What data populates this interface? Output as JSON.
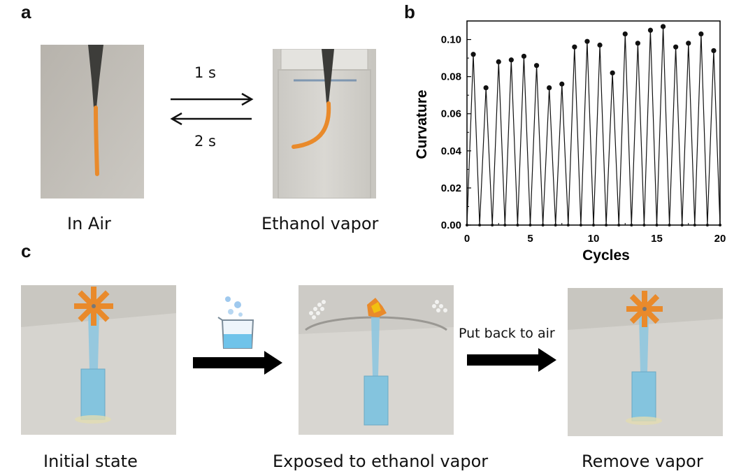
{
  "panel_a": {
    "letter": "a",
    "left_caption": "In Air",
    "right_caption": "Ethanol vapor",
    "forward_time": "1 s",
    "backward_time": "2 s"
  },
  "panel_b": {
    "letter": "b"
  },
  "panel_c": {
    "letter": "c",
    "captions": [
      "Initial state",
      "Exposed to ethanol vapor",
      "Remove vapor"
    ],
    "arrow_label": "Put back to air"
  },
  "chart_data": {
    "type": "line",
    "xlabel": "Cycles",
    "ylabel": "Curvature",
    "xlim": [
      0,
      20
    ],
    "ylim": [
      0,
      0.11
    ],
    "xticks": [
      0,
      5,
      10,
      15,
      20
    ],
    "yticks": [
      "0.00",
      "0.02",
      "0.04",
      "0.06",
      "0.08",
      "0.10"
    ],
    "grid": false,
    "legend": "none",
    "series": [
      {
        "x": [
          0.5,
          1.5,
          2.5,
          3.5,
          4.5,
          5.5,
          6.5,
          7.5,
          8.5,
          9.5,
          10.5,
          11.5,
          12.5,
          13.5,
          14.5,
          15.5,
          16.5,
          17.5,
          18.5,
          19.5
        ],
        "values": [
          0.092,
          0.074,
          0.088,
          0.089,
          0.091,
          0.086,
          0.074,
          0.076,
          0.096,
          0.099,
          0.097,
          0.082,
          0.103,
          0.098,
          0.105,
          0.107,
          0.096,
          0.098,
          0.103,
          0.094
        ]
      }
    ]
  }
}
